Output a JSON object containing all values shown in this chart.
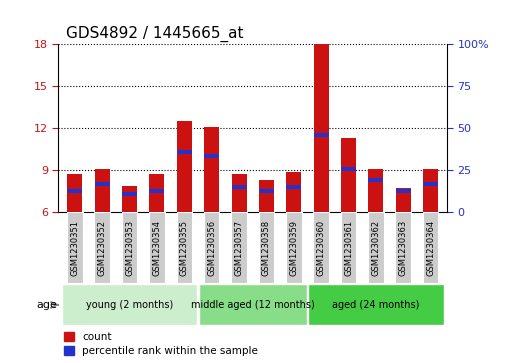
{
  "title": "GDS4892 / 1445665_at",
  "samples": [
    "GSM1230351",
    "GSM1230352",
    "GSM1230353",
    "GSM1230354",
    "GSM1230355",
    "GSM1230356",
    "GSM1230357",
    "GSM1230358",
    "GSM1230359",
    "GSM1230360",
    "GSM1230361",
    "GSM1230362",
    "GSM1230363",
    "GSM1230364"
  ],
  "count_values": [
    8.7,
    9.1,
    7.9,
    8.7,
    12.5,
    12.1,
    8.7,
    8.3,
    8.9,
    18.0,
    11.3,
    9.1,
    7.7,
    9.1
  ],
  "percentile_values": [
    7.5,
    8.0,
    7.3,
    7.55,
    10.3,
    10.0,
    7.8,
    7.5,
    7.8,
    11.5,
    9.1,
    8.3,
    7.5,
    8.0
  ],
  "bar_bottom": 6.0,
  "ylim_left": [
    6,
    18
  ],
  "ylim_right": [
    0,
    100
  ],
  "yticks_left": [
    6,
    9,
    12,
    15,
    18
  ],
  "yticks_right": [
    0,
    25,
    50,
    75,
    100
  ],
  "yticklabels_right": [
    "0",
    "25",
    "50",
    "75",
    "100%"
  ],
  "count_color": "#cc1111",
  "percentile_color": "#2233cc",
  "bar_width": 0.55,
  "percentile_bar_height": 0.28,
  "groups": [
    {
      "label": "young (2 months)",
      "start": 0,
      "end": 4,
      "color": "#cceecc"
    },
    {
      "label": "middle aged (12 months)",
      "start": 5,
      "end": 8,
      "color": "#88dd88"
    },
    {
      "label": "aged (24 months)",
      "start": 9,
      "end": 13,
      "color": "#44cc44"
    }
  ],
  "age_label": "age",
  "legend_count": "count",
  "legend_percentile": "percentile rank within the sample",
  "grid_color": "black",
  "left_tick_color": "#cc1111",
  "right_tick_color": "#2233cc",
  "tick_label_bg": "#cccccc",
  "sample_label_fontsize": 6.0,
  "axis_label_fontsize": 8,
  "title_fontsize": 11
}
